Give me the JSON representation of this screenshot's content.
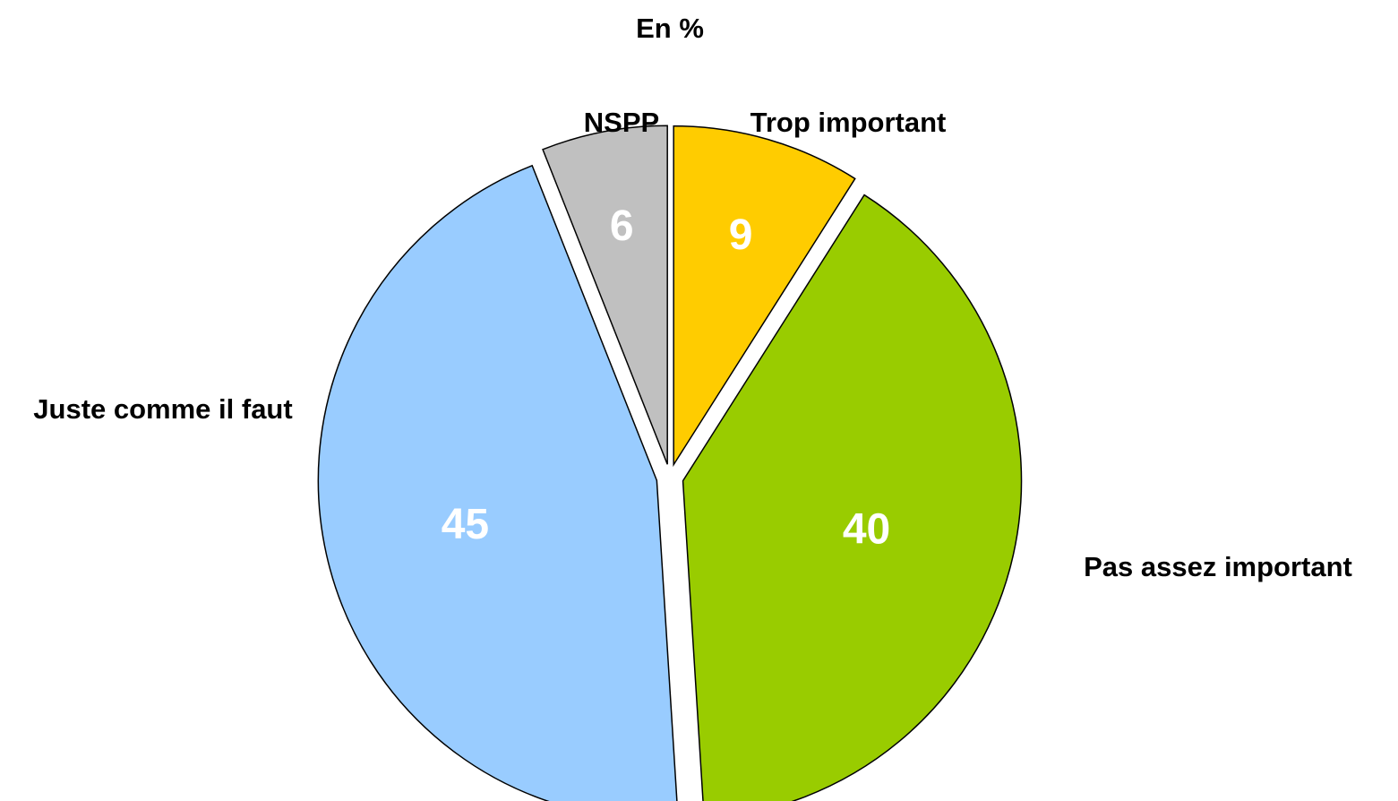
{
  "chart_data": {
    "type": "pie",
    "title": "En %",
    "slices": [
      {
        "label": "Trop important",
        "value": 9,
        "color": "#FFCC00"
      },
      {
        "label": "Pas assez important",
        "value": 40,
        "color": "#99CC00"
      },
      {
        "label": "Juste comme il faut",
        "value": 45,
        "color": "#99CCFF"
      },
      {
        "label": "NSPP",
        "value": 6,
        "color": "#C0C0C0"
      }
    ],
    "exploded": true,
    "legend": "none",
    "value_label_color": "#FFFFFF"
  }
}
